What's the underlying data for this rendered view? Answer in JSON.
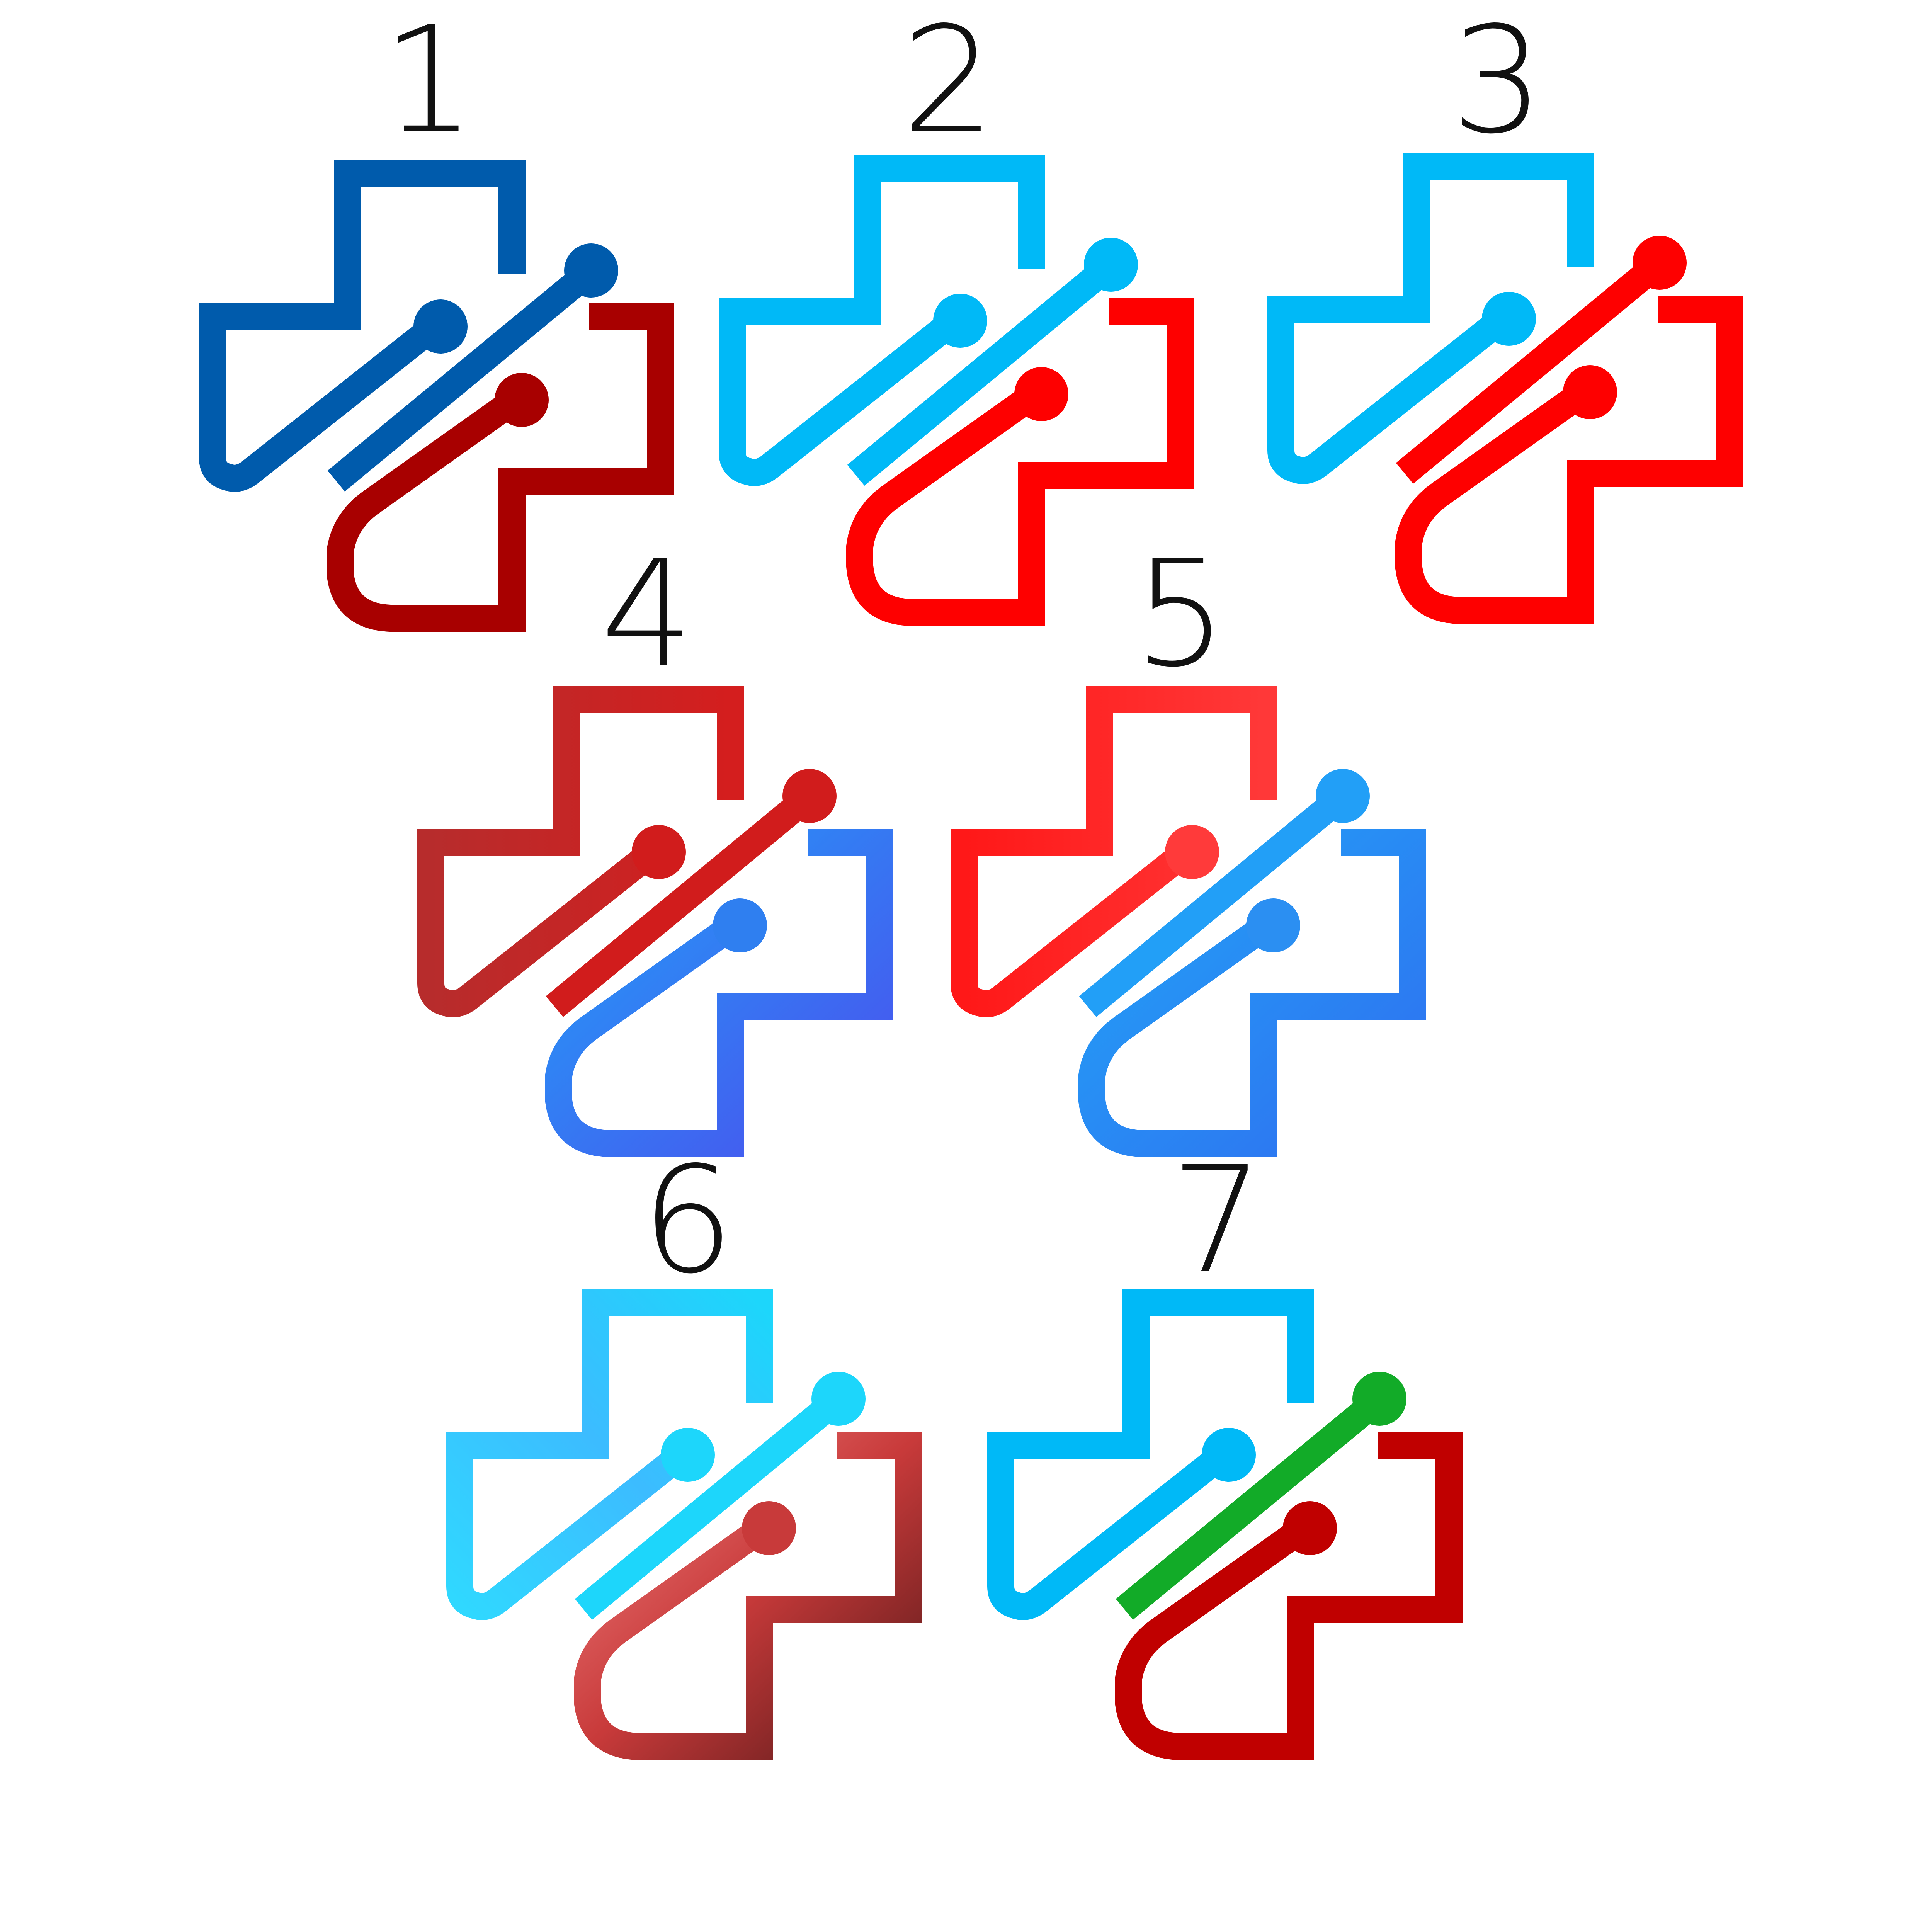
{
  "variants": [
    {
      "number": "1",
      "colors": {
        "top": "#005bac",
        "circuit_a": "#005bac",
        "circuit_b": "#005bac",
        "bottom": "#a80000"
      }
    },
    {
      "number": "2",
      "colors": {
        "top": "#00b9f7",
        "circuit_a": "#00b9f7",
        "circuit_b": "#00b9f7",
        "bottom": "#fe0000"
      }
    },
    {
      "number": "3",
      "colors": {
        "top": "#00b9f7",
        "circuit_a": "#00b9f7",
        "circuit_b": "#fe0000",
        "bottom": "#fe0000"
      }
    },
    {
      "number": "4",
      "colors": {
        "top": "#c62a2a",
        "circuit_a": "#d11c1c",
        "circuit_b": "#d11c1c",
        "bottom": "#2f7ff0"
      }
    },
    {
      "number": "5",
      "colors": {
        "top": "#ff2020",
        "circuit_a": "#ff3a3a",
        "circuit_b": "#229ff7",
        "bottom": "#2b8ff2"
      }
    },
    {
      "number": "6",
      "colors": {
        "top": "#33c3ff",
        "circuit_a": "#1dd6fb",
        "circuit_b": "#1dd6fb",
        "bottom": "#c83a3a"
      }
    },
    {
      "number": "7",
      "colors": {
        "top": "#00b9f7",
        "circuit_a": "#00b9f7",
        "circuit_b": "#12ab28",
        "bottom": "#c00000"
      }
    }
  ]
}
